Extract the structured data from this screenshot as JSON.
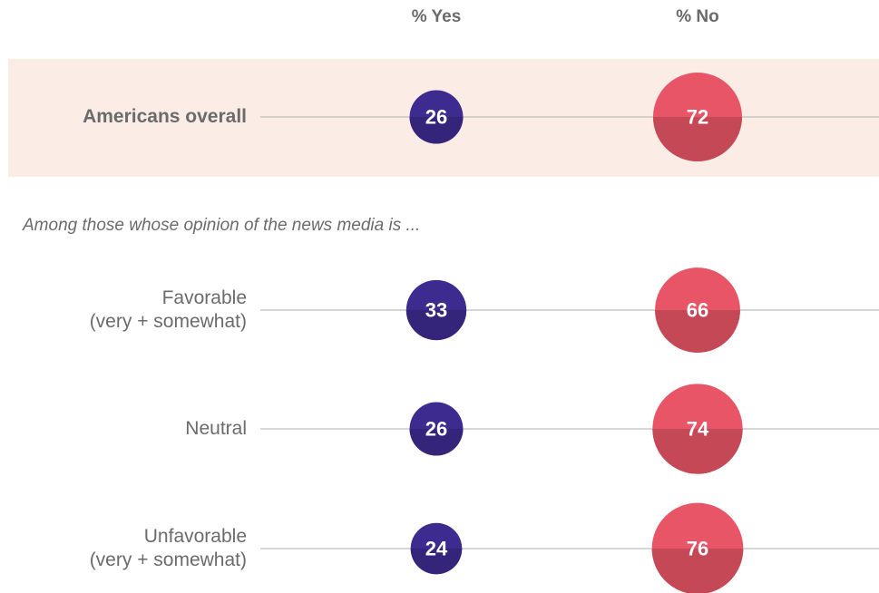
{
  "chart_data": {
    "type": "bubble",
    "columns": [
      "% Yes",
      "% No"
    ],
    "annotation": "Among those whose opinion of the news media is ...",
    "categories": [
      "Americans overall",
      "Favorable\n(very + somewhat)",
      "Neutral",
      "Unfavorable\n(very + somewhat)"
    ],
    "series": [
      {
        "name": "% Yes",
        "color": "#3d2b8f",
        "values": [
          26,
          33,
          26,
          24
        ]
      },
      {
        "name": "% No",
        "color": "#e85566",
        "values": [
          72,
          66,
          74,
          76
        ]
      }
    ],
    "highlight_color": "#fbece6"
  }
}
